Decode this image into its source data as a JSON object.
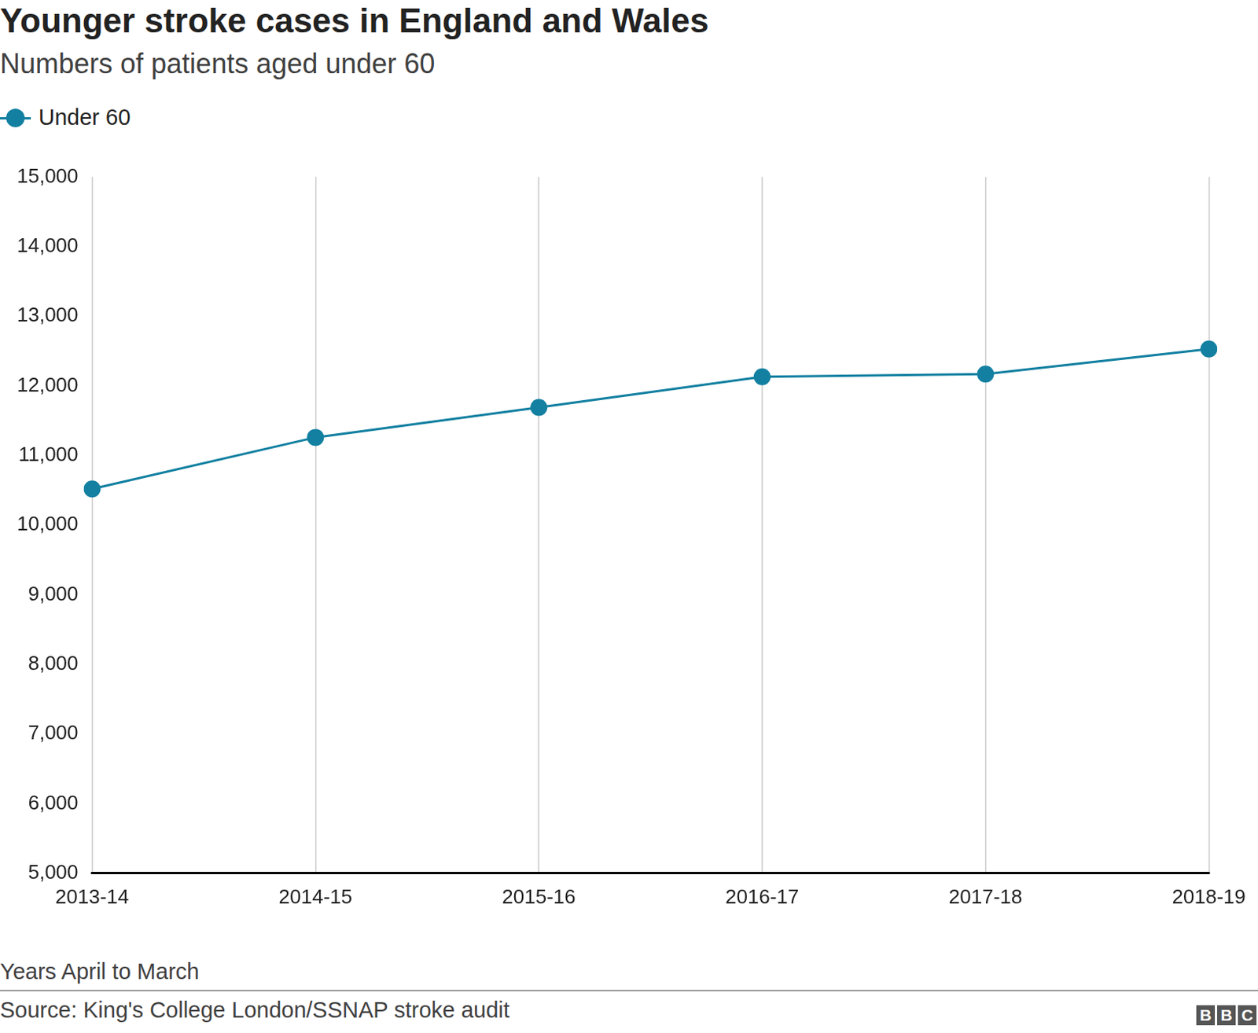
{
  "chart_data": {
    "type": "line",
    "title": "Younger stroke cases in England and Wales",
    "subtitle": "Numbers of patients aged under 60",
    "xlabel": "Years April to March",
    "source": "Source: King's College London/SSNAP stroke audit",
    "logo": "BBC",
    "categories": [
      "2013-14",
      "2014-15",
      "2015-16",
      "2016-17",
      "2017-18",
      "2018-19"
    ],
    "series": [
      {
        "name": "Under 60",
        "color": "#1380a1",
        "marker": "circle",
        "values": [
          10520,
          11260,
          11690,
          12130,
          12170,
          12530
        ]
      }
    ],
    "ylim": [
      5000,
      15000
    ],
    "yticks": [
      {
        "value": 5000,
        "label": "5,000"
      },
      {
        "value": 6000,
        "label": "6,000"
      },
      {
        "value": 7000,
        "label": "7,000"
      },
      {
        "value": 8000,
        "label": "8,000"
      },
      {
        "value": 9000,
        "label": "9,000"
      },
      {
        "value": 10000,
        "label": "10,000"
      },
      {
        "value": 11000,
        "label": "11,000"
      },
      {
        "value": 12000,
        "label": "12,000"
      },
      {
        "value": 13000,
        "label": "13,000"
      },
      {
        "value": 14000,
        "label": "14,000"
      },
      {
        "value": 15000,
        "label": "15,000"
      }
    ],
    "grid": "x",
    "legend": "top-left"
  }
}
